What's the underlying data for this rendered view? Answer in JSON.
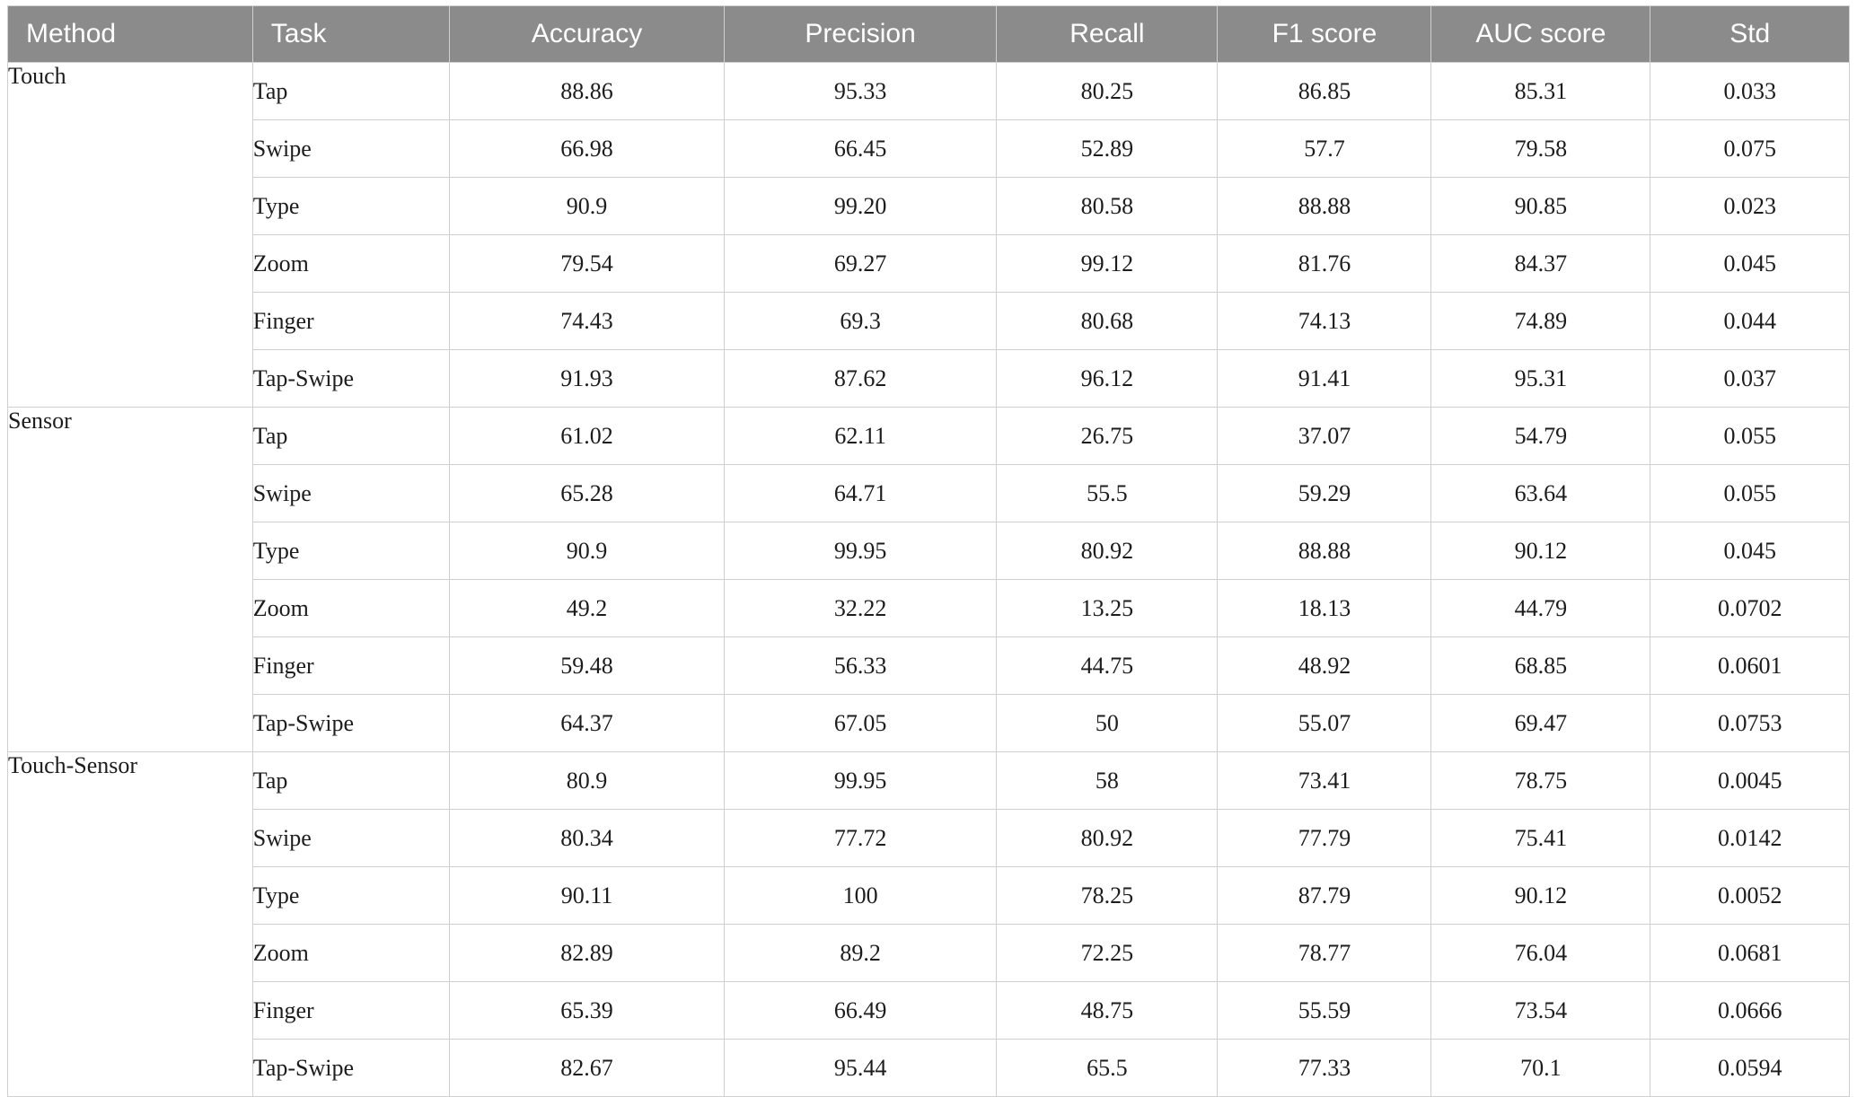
{
  "table": {
    "columns": [
      {
        "label": "Method"
      },
      {
        "label": "Task"
      },
      {
        "label": "Accuracy"
      },
      {
        "label": "Precision"
      },
      {
        "label": "Recall"
      },
      {
        "label": "F1 score"
      },
      {
        "label": "AUC score"
      },
      {
        "label": "Std"
      }
    ],
    "groups": [
      {
        "method": "Touch",
        "rows": [
          {
            "task": "Tap",
            "values": [
              "88.86",
              "95.33",
              "80.25",
              "86.85",
              "85.31",
              "0.033"
            ]
          },
          {
            "task": "Swipe",
            "values": [
              "66.98",
              "66.45",
              "52.89",
              "57.7",
              "79.58",
              "0.075"
            ]
          },
          {
            "task": "Type",
            "values": [
              "90.9",
              "99.20",
              "80.58",
              "88.88",
              "90.85",
              "0.023"
            ]
          },
          {
            "task": "Zoom",
            "values": [
              "79.54",
              "69.27",
              "99.12",
              "81.76",
              "84.37",
              "0.045"
            ]
          },
          {
            "task": "Finger",
            "values": [
              "74.43",
              "69.3",
              "80.68",
              "74.13",
              "74.89",
              "0.044"
            ]
          },
          {
            "task": "Tap-Swipe",
            "values": [
              "91.93",
              "87.62",
              "96.12",
              "91.41",
              "95.31",
              "0.037"
            ]
          }
        ]
      },
      {
        "method": "Sensor",
        "rows": [
          {
            "task": "Tap",
            "values": [
              "61.02",
              "62.11",
              "26.75",
              "37.07",
              "54.79",
              "0.055"
            ]
          },
          {
            "task": "Swipe",
            "values": [
              "65.28",
              "64.71",
              "55.5",
              "59.29",
              "63.64",
              "0.055"
            ]
          },
          {
            "task": "Type",
            "values": [
              "90.9",
              "99.95",
              "80.92",
              "88.88",
              "90.12",
              "0.045"
            ]
          },
          {
            "task": "Zoom",
            "values": [
              "49.2",
              "32.22",
              "13.25",
              "18.13",
              "44.79",
              "0.0702"
            ]
          },
          {
            "task": "Finger",
            "values": [
              "59.48",
              "56.33",
              "44.75",
              "48.92",
              "68.85",
              "0.0601"
            ]
          },
          {
            "task": "Tap-Swipe",
            "values": [
              "64.37",
              "67.05",
              "50",
              "55.07",
              "69.47",
              "0.0753"
            ]
          }
        ]
      },
      {
        "method": "Touch-Sensor",
        "rows": [
          {
            "task": "Tap",
            "values": [
              "80.9",
              "99.95",
              "58",
              "73.41",
              "78.75",
              "0.0045"
            ]
          },
          {
            "task": "Swipe",
            "values": [
              "80.34",
              "77.72",
              "80.92",
              "77.79",
              "75.41",
              "0.0142"
            ]
          },
          {
            "task": "Type",
            "values": [
              "90.11",
              "100",
              "78.25",
              "87.79",
              "90.12",
              "0.0052"
            ]
          },
          {
            "task": "Zoom",
            "values": [
              "82.89",
              "89.2",
              "72.25",
              "78.77",
              "76.04",
              "0.0681"
            ]
          },
          {
            "task": "Finger",
            "values": [
              "65.39",
              "66.49",
              "48.75",
              "55.59",
              "73.54",
              "0.0666"
            ]
          },
          {
            "task": "Tap-Swipe",
            "values": [
              "82.67",
              "95.44",
              "65.5",
              "77.33",
              "70.1",
              "0.0594"
            ]
          }
        ]
      }
    ],
    "colors": {
      "header_bg": "#8b8b8b",
      "header_text": "#ffffff",
      "border": "#cfcfcf",
      "body_text": "#1c1c1c"
    }
  }
}
